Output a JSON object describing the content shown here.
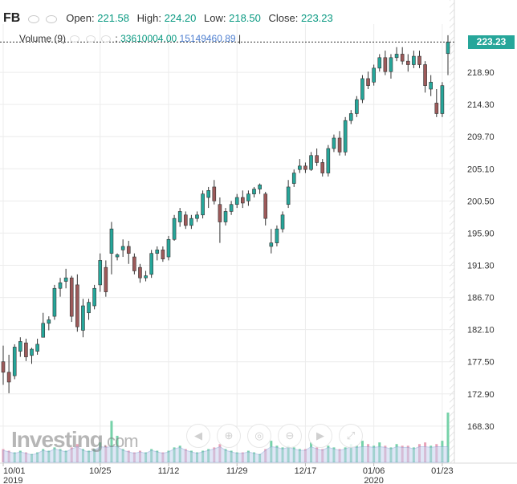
{
  "chart_data": {
    "type": "candlestick",
    "title": "FB",
    "ohlc_legend": {
      "open_label": "Open:",
      "open": "221.58",
      "high_label": "High:",
      "high": "224.20",
      "low_label": "Low:",
      "low": "218.50",
      "close_label": "Close:",
      "close": "223.23"
    },
    "volume_legend": {
      "label": "Volume (9)",
      "value1": "33610004.00",
      "value2": "15149460.89"
    },
    "last_price": "223.23",
    "y_ticks": [
      218.9,
      214.3,
      209.7,
      205.1,
      200.5,
      195.9,
      191.3,
      186.7,
      182.1,
      177.5,
      172.9,
      168.3
    ],
    "ylim": [
      163.0,
      225.8
    ],
    "x_ticks": [
      {
        "label": "10/01",
        "sub": "2019",
        "index": 0
      },
      {
        "label": "10/25",
        "sub": "",
        "index": 17
      },
      {
        "label": "11/12",
        "sub": "",
        "index": 29
      },
      {
        "label": "11/29",
        "sub": "",
        "index": 41
      },
      {
        "label": "12/17",
        "sub": "",
        "index": 53
      },
      {
        "label": "01/06",
        "sub": "2020",
        "index": 65
      },
      {
        "label": "01/23",
        "sub": "",
        "index": 77
      }
    ],
    "candles": [
      [
        177.5,
        179.8,
        174.2,
        176.0
      ],
      [
        176.0,
        178.5,
        173.0,
        174.6
      ],
      [
        175.5,
        180.0,
        175.0,
        179.6
      ],
      [
        179.0,
        181.0,
        178.2,
        180.4
      ],
      [
        180.2,
        180.8,
        177.6,
        178.2
      ],
      [
        178.4,
        179.5,
        177.2,
        179.3
      ],
      [
        179.0,
        180.8,
        178.5,
        180.0
      ],
      [
        181.0,
        184.5,
        181.0,
        183.0
      ],
      [
        183.0,
        184.0,
        182.0,
        183.5
      ],
      [
        184.0,
        188.5,
        183.5,
        188.0
      ],
      [
        188.0,
        189.5,
        186.8,
        188.8
      ],
      [
        189.0,
        190.8,
        188.0,
        189.5
      ],
      [
        189.5,
        189.8,
        183.2,
        184.0
      ],
      [
        188.5,
        190.0,
        181.8,
        182.5
      ],
      [
        182.0,
        186.5,
        181.0,
        185.5
      ],
      [
        184.5,
        186.5,
        183.5,
        186.0
      ],
      [
        185.5,
        188.5,
        185.0,
        188.0
      ],
      [
        188.5,
        193.0,
        187.5,
        192.0
      ],
      [
        191.0,
        192.0,
        186.8,
        187.5
      ],
      [
        193.0,
        197.5,
        190.0,
        196.5
      ],
      [
        192.5,
        193.0,
        192.0,
        192.8
      ],
      [
        193.5,
        195.0,
        192.5,
        194.0
      ],
      [
        194.0,
        194.8,
        191.5,
        193.0
      ],
      [
        192.5,
        193.0,
        190.0,
        190.5
      ],
      [
        191.0,
        191.5,
        188.8,
        189.5
      ],
      [
        189.5,
        190.5,
        189.0,
        189.8
      ],
      [
        190.0,
        193.5,
        189.5,
        193.0
      ],
      [
        193.0,
        194.0,
        192.0,
        193.5
      ],
      [
        193.5,
        194.0,
        191.8,
        192.2
      ],
      [
        192.5,
        195.5,
        192.0,
        195.0
      ],
      [
        195.0,
        198.5,
        194.8,
        198.0
      ],
      [
        197.5,
        199.5,
        196.8,
        199.0
      ],
      [
        198.5,
        199.0,
        196.5,
        197.0
      ],
      [
        197.0,
        198.5,
        196.5,
        198.0
      ],
      [
        198.0,
        199.0,
        197.5,
        198.5
      ],
      [
        198.5,
        202.0,
        198.0,
        201.5
      ],
      [
        201.0,
        202.5,
        199.5,
        202.0
      ],
      [
        202.5,
        203.5,
        200.0,
        200.5
      ],
      [
        200.0,
        201.0,
        194.5,
        197.5
      ],
      [
        197.5,
        199.5,
        197.0,
        199.0
      ],
      [
        199.0,
        200.5,
        198.5,
        200.0
      ],
      [
        200.0,
        201.5,
        199.5,
        201.0
      ],
      [
        201.0,
        202.0,
        199.5,
        200.2
      ],
      [
        200.5,
        202.0,
        199.8,
        201.5
      ],
      [
        201.5,
        202.5,
        201.0,
        202.2
      ],
      [
        202.2,
        203.0,
        201.5,
        202.8
      ],
      [
        201.5,
        201.8,
        197.0,
        198.0
      ],
      [
        194.0,
        196.5,
        193.0,
        194.5
      ],
      [
        194.5,
        197.0,
        194.0,
        196.5
      ],
      [
        196.5,
        199.0,
        196.0,
        198.5
      ],
      [
        200.0,
        203.5,
        199.5,
        202.5
      ],
      [
        203.0,
        205.0,
        202.5,
        204.5
      ],
      [
        205.0,
        206.5,
        204.5,
        205.5
      ],
      [
        205.5,
        206.0,
        204.5,
        205.0
      ],
      [
        205.0,
        207.5,
        204.8,
        207.0
      ],
      [
        207.0,
        208.0,
        205.5,
        206.0
      ],
      [
        206.0,
        206.5,
        204.0,
        204.5
      ],
      [
        204.5,
        208.5,
        204.0,
        208.0
      ],
      [
        208.0,
        210.0,
        207.5,
        209.5
      ],
      [
        209.5,
        210.5,
        207.0,
        207.5
      ],
      [
        207.5,
        212.5,
        207.0,
        212.0
      ],
      [
        212.0,
        213.5,
        211.5,
        213.0
      ],
      [
        213.0,
        215.5,
        212.5,
        215.0
      ],
      [
        215.0,
        218.5,
        214.5,
        218.0
      ],
      [
        218.0,
        219.0,
        216.5,
        217.0
      ],
      [
        217.5,
        220.0,
        217.0,
        219.5
      ],
      [
        219.5,
        221.5,
        219.0,
        221.0
      ],
      [
        221.0,
        222.0,
        218.5,
        219.0
      ],
      [
        219.0,
        221.5,
        218.0,
        221.0
      ],
      [
        221.0,
        222.5,
        220.5,
        221.5
      ],
      [
        221.5,
        222.5,
        220.0,
        220.5
      ],
      [
        220.5,
        221.5,
        219.0,
        220.0
      ],
      [
        220.0,
        222.0,
        219.5,
        221.2
      ],
      [
        221.2,
        222.0,
        219.5,
        220.0
      ],
      [
        220.0,
        220.5,
        216.0,
        217.0
      ],
      [
        216.5,
        218.5,
        215.5,
        217.5
      ],
      [
        214.5,
        216.5,
        212.5,
        213.0
      ],
      [
        213.0,
        217.5,
        212.5,
        217.0
      ],
      [
        221.58,
        224.2,
        218.5,
        223.23
      ]
    ],
    "volumes": [
      0.8,
      0.7,
      0.6,
      0.7,
      0.6,
      0.5,
      0.6,
      0.8,
      0.7,
      0.9,
      0.8,
      0.7,
      0.9,
      1.1,
      0.8,
      0.7,
      0.8,
      1.2,
      1.0,
      2.5,
      1.6,
      0.8,
      0.7,
      0.6,
      0.7,
      0.6,
      0.8,
      0.7,
      0.6,
      0.7,
      0.9,
      1.0,
      0.8,
      0.7,
      0.6,
      0.7,
      0.8,
      0.9,
      1.1,
      0.8,
      0.7,
      0.6,
      0.6,
      0.7,
      0.6,
      0.5,
      0.8,
      1.3,
      1.0,
      0.9,
      1.0,
      0.9,
      0.8,
      0.8,
      1.2,
      0.9,
      0.8,
      1.0,
      0.9,
      0.8,
      0.9,
      1.1,
      1.0,
      1.3,
      1.1,
      1.0,
      1.2,
      1.0,
      0.9,
      1.1,
      1.0,
      1.0,
      0.9,
      1.1,
      1.2,
      1.0,
      1.1,
      1.3,
      3.0
    ],
    "grid": true,
    "y_axis_side": "right"
  },
  "watermark": {
    "brand": "Investing",
    "suffix": ".com"
  },
  "colors": {
    "up": "#26a69a",
    "down": "#9d5a5a",
    "grid": "#ececec",
    "volume_up": "#76d2a9",
    "volume_down": "#e9a2b8",
    "volume_area": "#c5d3ef"
  }
}
